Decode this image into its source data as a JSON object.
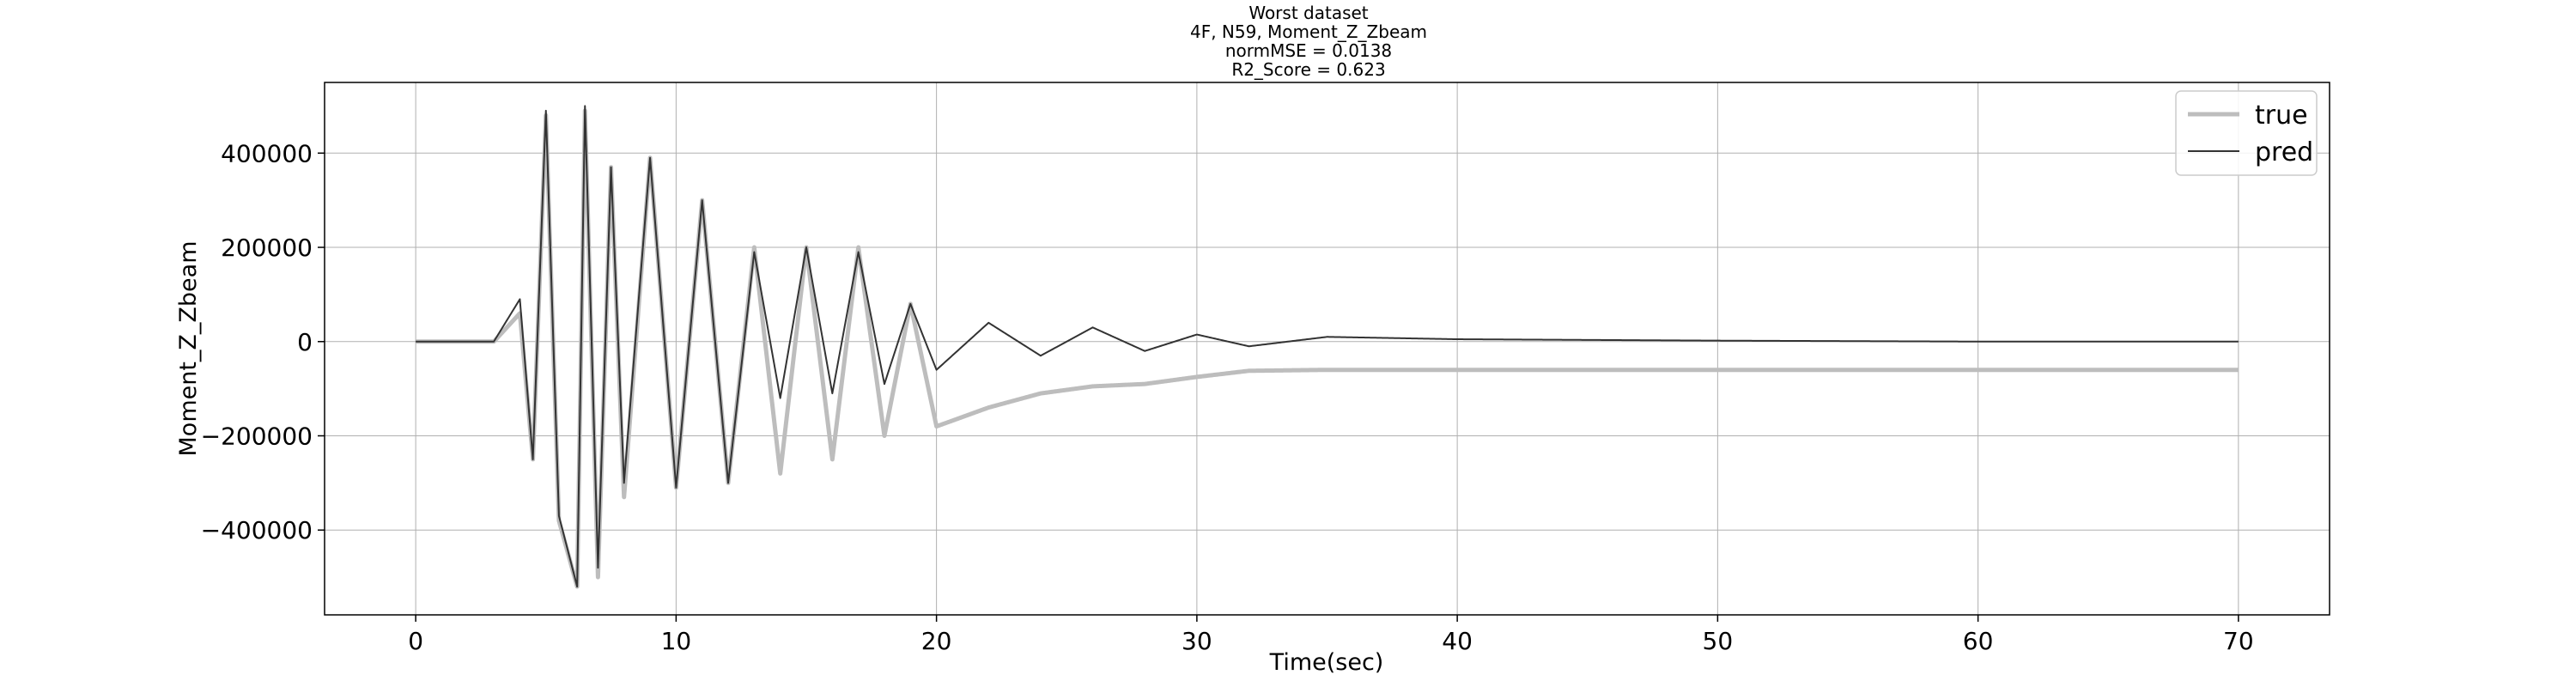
{
  "chart_data": {
    "type": "line",
    "title_lines": [
      "Worst dataset",
      "4F, N59, Moment_Z_Zbeam",
      "normMSE = 0.0138",
      "R2_Score = 0.623"
    ],
    "xlabel": "Time(sec)",
    "ylabel": "Moment_Z_Zbeam",
    "xlim": [
      -3.5,
      73.5
    ],
    "ylim": [
      -580000,
      550000
    ],
    "xticks": [
      0,
      10,
      20,
      30,
      40,
      50,
      60,
      70
    ],
    "xtick_labels": [
      "0",
      "10",
      "20",
      "30",
      "40",
      "50",
      "60",
      "70"
    ],
    "yticks": [
      -400000,
      -200000,
      0,
      200000,
      400000
    ],
    "ytick_labels": [
      "−400000",
      "−200000",
      "0",
      "200000",
      "400000"
    ],
    "grid": true,
    "legend_position": "top-right",
    "series": [
      {
        "name": "true",
        "color": "#bdbdbd",
        "points": [
          [
            0,
            0
          ],
          [
            3,
            0
          ],
          [
            4,
            60000
          ],
          [
            4.5,
            -250000
          ],
          [
            5,
            480000
          ],
          [
            5.5,
            -380000
          ],
          [
            6.2,
            -520000
          ],
          [
            6.5,
            490000
          ],
          [
            7,
            -500000
          ],
          [
            7.5,
            370000
          ],
          [
            8,
            -330000
          ],
          [
            9,
            390000
          ],
          [
            10,
            -310000
          ],
          [
            11,
            300000
          ],
          [
            12,
            -300000
          ],
          [
            13,
            200000
          ],
          [
            14,
            -280000
          ],
          [
            15,
            200000
          ],
          [
            16,
            -250000
          ],
          [
            17,
            200000
          ],
          [
            18,
            -200000
          ],
          [
            19,
            80000
          ],
          [
            20,
            -180000
          ],
          [
            22,
            -140000
          ],
          [
            24,
            -110000
          ],
          [
            26,
            -95000
          ],
          [
            28,
            -90000
          ],
          [
            30,
            -75000
          ],
          [
            32,
            -62000
          ],
          [
            35,
            -60000
          ],
          [
            40,
            -60000
          ],
          [
            50,
            -60000
          ],
          [
            60,
            -60000
          ],
          [
            70,
            -60000
          ]
        ]
      },
      {
        "name": "pred",
        "color": "#333333",
        "points": [
          [
            0,
            0
          ],
          [
            3,
            0
          ],
          [
            4,
            90000
          ],
          [
            4.5,
            -250000
          ],
          [
            5,
            490000
          ],
          [
            5.5,
            -370000
          ],
          [
            6.2,
            -520000
          ],
          [
            6.5,
            500000
          ],
          [
            7,
            -480000
          ],
          [
            7.5,
            370000
          ],
          [
            8,
            -300000
          ],
          [
            9,
            390000
          ],
          [
            10,
            -310000
          ],
          [
            11,
            300000
          ],
          [
            12,
            -300000
          ],
          [
            13,
            190000
          ],
          [
            14,
            -120000
          ],
          [
            15,
            200000
          ],
          [
            16,
            -110000
          ],
          [
            17,
            190000
          ],
          [
            18,
            -90000
          ],
          [
            19,
            80000
          ],
          [
            20,
            -60000
          ],
          [
            22,
            40000
          ],
          [
            24,
            -30000
          ],
          [
            26,
            30000
          ],
          [
            28,
            -20000
          ],
          [
            30,
            15000
          ],
          [
            32,
            -10000
          ],
          [
            35,
            10000
          ],
          [
            40,
            5000
          ],
          [
            50,
            2000
          ],
          [
            60,
            0
          ],
          [
            70,
            0
          ]
        ]
      }
    ]
  }
}
